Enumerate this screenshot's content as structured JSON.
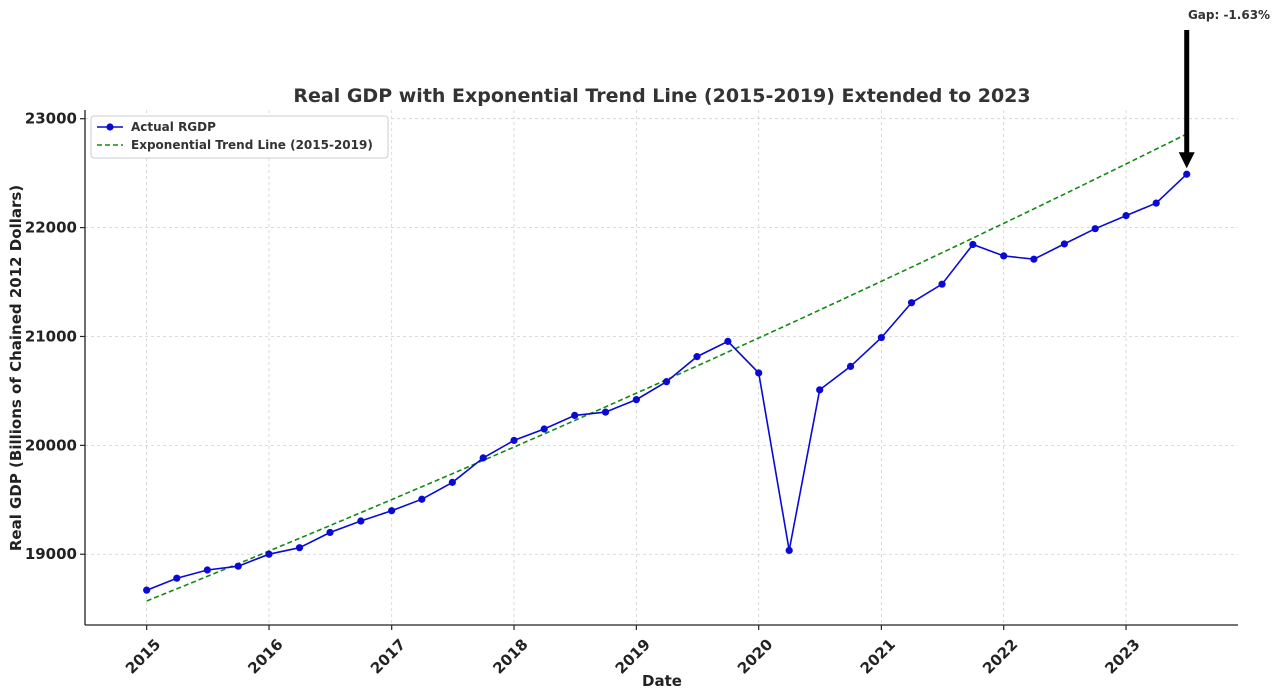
{
  "chart_data": {
    "type": "line",
    "title": "Real GDP with Exponential Trend Line (2015-2019) Extended to 2023",
    "xlabel": "Date",
    "ylabel": "Real GDP (Billions of Chained 2012 Dollars)",
    "xticks": [
      "2015",
      "2016",
      "2017",
      "2018",
      "2019",
      "2020",
      "2021",
      "2022",
      "2023"
    ],
    "yticks": [
      19000,
      20000,
      21000,
      22000,
      23000
    ],
    "ylim": [
      18350,
      23080
    ],
    "xlim": [
      "2014-07-01",
      "2023-12-01"
    ],
    "grid": true,
    "legend_position": "top-left",
    "series": [
      {
        "name": "Actual RGDP",
        "style": "line-marker",
        "color": "#0a0ad6",
        "x": [
          "2015-01-01",
          "2015-04-01",
          "2015-07-01",
          "2015-10-01",
          "2016-01-01",
          "2016-04-01",
          "2016-07-01",
          "2016-10-01",
          "2017-01-01",
          "2017-04-01",
          "2017-07-01",
          "2017-10-01",
          "2018-01-01",
          "2018-04-01",
          "2018-07-01",
          "2018-10-01",
          "2019-01-01",
          "2019-04-01",
          "2019-07-01",
          "2019-10-01",
          "2020-01-01",
          "2020-04-01",
          "2020-07-01",
          "2020-10-01",
          "2021-01-01",
          "2021-04-01",
          "2021-07-01",
          "2021-10-01",
          "2022-01-01",
          "2022-04-01",
          "2022-07-01",
          "2022-10-01",
          "2023-01-01",
          "2023-04-01",
          "2023-07-01"
        ],
        "values": [
          18670,
          18780,
          18855,
          18890,
          19000,
          19060,
          19200,
          19305,
          19400,
          19505,
          19660,
          19885,
          20045,
          20150,
          20275,
          20305,
          20420,
          20585,
          20815,
          20955,
          20665,
          19035,
          20510,
          20725,
          20990,
          21310,
          21480,
          21845,
          21740,
          21710,
          21850,
          21990,
          22110,
          22225,
          22490
        ]
      },
      {
        "name": "Exponential Trend Line (2015-2019)",
        "style": "dashed",
        "color": "#138a13",
        "x": [
          "2015-01-01",
          "2023-07-01"
        ],
        "values": [
          18570,
          22860
        ],
        "curve_growth": "exponential"
      }
    ],
    "annotation": {
      "text": "Gap: -1.63%",
      "target_x": "2023-07-01",
      "target_y": 22490
    }
  }
}
